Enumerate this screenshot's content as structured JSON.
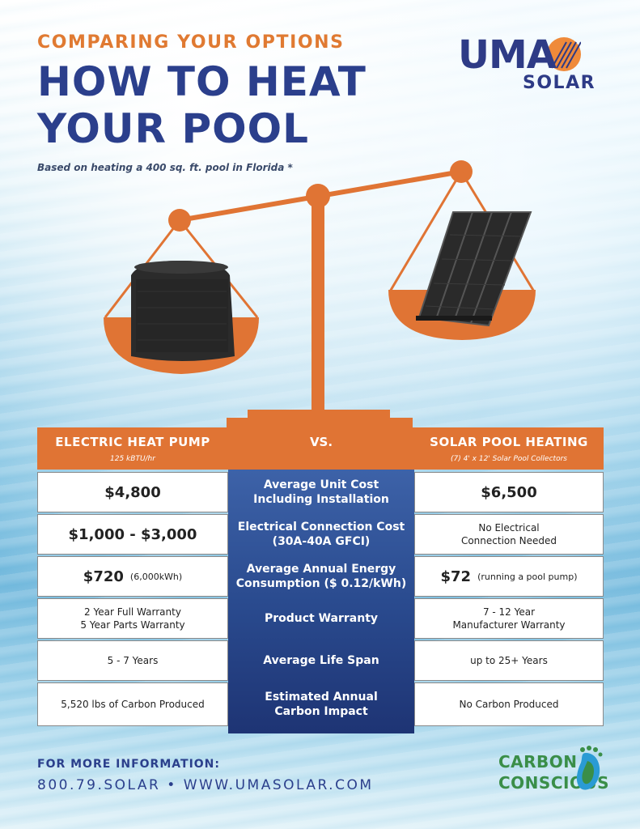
{
  "header": {
    "eyebrow": "COMPARING YOUR OPTIONS",
    "title_line1": "HOW TO HEAT",
    "title_line2": "YOUR POOL",
    "subtitle": "Based on heating a 400 sq. ft. pool in Florida *"
  },
  "logo": {
    "brand": "UMA",
    "sub": "SOLAR"
  },
  "colors": {
    "orange": "#e07434",
    "navy": "#2b3f8c",
    "green": "#3a8e48"
  },
  "table": {
    "left_title": "ELECTRIC HEAT PUMP",
    "left_sub": "125 kBTU/hr",
    "mid_title": "VS.",
    "right_title": "SOLAR POOL HEATING",
    "right_sub": "(7) 4' x 12' Solar Pool Collectors",
    "rows": [
      {
        "label_1": "Average Unit Cost",
        "label_2": "Including Installation",
        "left": "$4,800",
        "right": "$6,500"
      },
      {
        "label_1": "Electrical Connection Cost",
        "label_2": "(30A-40A GFCI)",
        "left": "$1,000 - $3,000",
        "right_1": "No Electrical",
        "right_2": "Connection Needed"
      },
      {
        "label_1": "Average Annual Energy",
        "label_2": "Consumption ($ 0.12/kWh)",
        "left": "$720",
        "left_note": "(6,000kWh)",
        "right": "$72",
        "right_note": "(running a pool pump)"
      },
      {
        "label": "Product Warranty",
        "left_1": "2 Year Full Warranty",
        "left_2": "5 Year Parts Warranty",
        "right_1": "7 - 12 Year",
        "right_2": "Manufacturer Warranty"
      },
      {
        "label": "Average Life Span",
        "left": "5 - 7 Years",
        "right": "up to 25+ Years"
      },
      {
        "label_1": "Estimated Annual",
        "label_2": "Carbon Impact",
        "left": "5,520 lbs of Carbon Produced",
        "right": "No Carbon Produced"
      }
    ]
  },
  "footer": {
    "label": "FOR MORE INFORMATION:",
    "contact": "800.79.SOLAR  •  WWW.UMASOLAR.COM",
    "badge_line1": "CARBON",
    "badge_line2": "CONSCIOUS"
  },
  "icons": [
    "heat-pump-icon",
    "solar-collector-icon",
    "footprint-icon",
    "sun-icon"
  ]
}
